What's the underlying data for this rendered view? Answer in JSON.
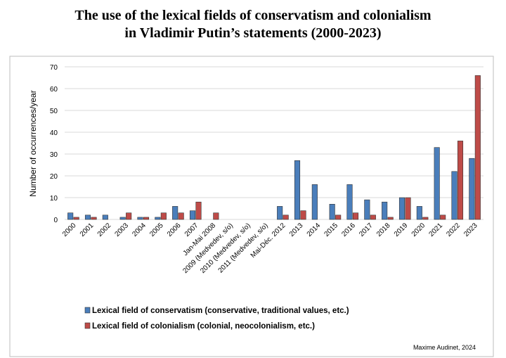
{
  "chart_data": {
    "type": "bar",
    "title_line1": "The use of the lexical fields of conservatism and colonialism",
    "title_line2": "in Vladimir Putin’s statements (2000-2023)",
    "xlabel": "",
    "ylabel": "Number of occurrences/year",
    "ylim": [
      0,
      70
    ],
    "yticks": [
      0,
      10,
      20,
      30,
      40,
      50,
      60,
      70
    ],
    "grid": true,
    "legend_position": "bottom",
    "credit": "Maxime Audinet, 2024",
    "categories": [
      "2000",
      "2001",
      "2002",
      "2003",
      "2004",
      "2005",
      "2006",
      "2007",
      "Jan-Mai 2008",
      "2009 (Medvedev, s/o)",
      "2010 (Medvedev, s/o)",
      "2011 (Medvedev, s/o)",
      "Mai-Déc. 2012",
      "2013",
      "2014",
      "2015",
      "2016",
      "2017",
      "2018",
      "2019",
      "2020",
      "2021",
      "2022",
      "2023"
    ],
    "series": [
      {
        "name": "Lexical field of conservatism (conservative, traditional values, etc.)",
        "color": "#4a7ebb",
        "values": [
          3,
          2,
          2,
          1,
          1,
          1,
          6,
          4,
          0,
          0,
          0,
          0,
          6,
          27,
          16,
          7,
          16,
          9,
          8,
          10,
          6,
          33,
          22,
          28
        ]
      },
      {
        "name": "Lexical field of colonialism (colonial, neocolonialism, etc.)",
        "color": "#be4b48",
        "values": [
          1,
          1,
          0,
          3,
          1,
          3,
          3,
          8,
          3,
          0,
          0,
          0,
          2,
          4,
          0,
          2,
          3,
          2,
          1,
          10,
          1,
          2,
          36,
          66
        ]
      }
    ]
  }
}
